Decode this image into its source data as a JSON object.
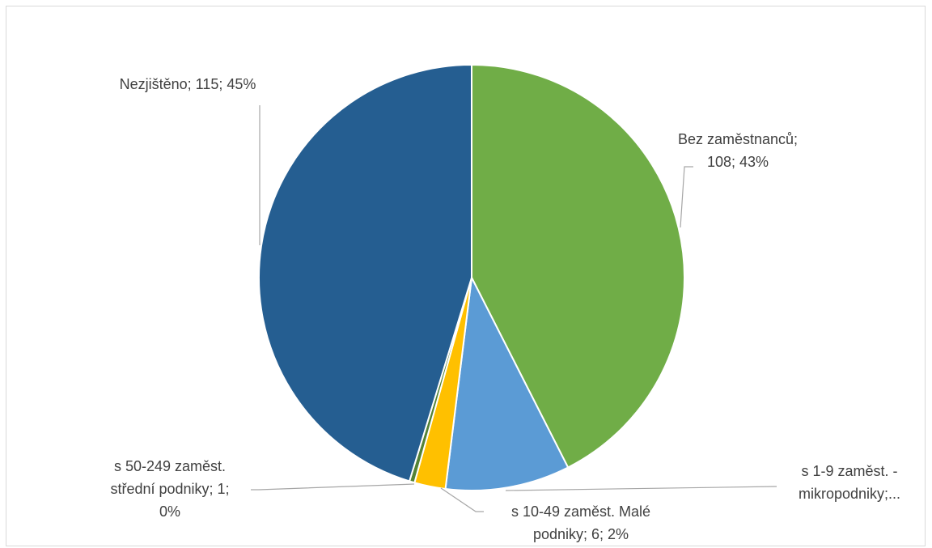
{
  "chart_data": {
    "type": "pie",
    "title": "",
    "slices": [
      {
        "category": "Bez zaměstnanců",
        "value": 108,
        "percent": 43,
        "color": "#70ad47",
        "label_lines": [
          "Bez zaměstnanců;",
          "108; 43%"
        ]
      },
      {
        "category": "s 1-9 zaměst. - mikropodniky",
        "value": 24,
        "percent": 9,
        "color": "#5b9bd5",
        "label_lines": [
          "s 1-9 zaměst. -",
          "mikropodniky;..."
        ]
      },
      {
        "category": "s 10-49 zaměst. Malé podniky",
        "value": 6,
        "percent": 2,
        "color": "#ffc000",
        "label_lines": [
          "s 10-49 zaměst. Malé",
          "podniky; 6; 2%"
        ]
      },
      {
        "category": "s 50-249 zaměst. střední podniky",
        "value": 1,
        "percent": 0,
        "color": "#548235",
        "label_lines": [
          "s 50-249 zaměst.",
          "střední podniky; 1;",
          "0%"
        ]
      },
      {
        "category": "Nezjištěno",
        "value": 115,
        "percent": 45,
        "color": "#255e91",
        "label_lines": [
          "Nezjištěno; 115; 45%"
        ]
      }
    ],
    "legend": "none"
  }
}
